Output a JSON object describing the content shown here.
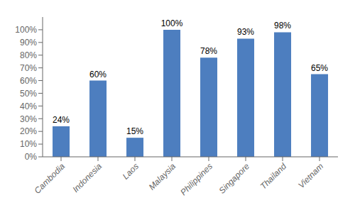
{
  "chart_data": {
    "type": "bar",
    "categories": [
      "Cambodia",
      "Indonesia",
      "Laos",
      "Malaysia",
      "Philippines",
      "Singapore",
      "Thailand",
      "Vietnam"
    ],
    "values": [
      24,
      60,
      15,
      100,
      78,
      93,
      98,
      65
    ],
    "value_labels": [
      "24%",
      "60%",
      "15%",
      "100%",
      "78%",
      "93%",
      "98%",
      "65%"
    ],
    "data_labels": true,
    "color": "#4d7ebf",
    "ylim": [
      0,
      110
    ],
    "yticks": [
      {
        "value": 0,
        "label": "0%"
      },
      {
        "value": 10,
        "label": "10%"
      },
      {
        "value": 20,
        "label": "20%"
      },
      {
        "value": 30,
        "label": "30%"
      },
      {
        "value": 40,
        "label": "40%"
      },
      {
        "value": 50,
        "label": "50%"
      },
      {
        "value": 60,
        "label": "60%"
      },
      {
        "value": 70,
        "label": "70%"
      },
      {
        "value": 80,
        "label": "80%"
      },
      {
        "value": 90,
        "label": "90%"
      },
      {
        "value": 100,
        "label": "100%"
      }
    ],
    "grid": false
  }
}
